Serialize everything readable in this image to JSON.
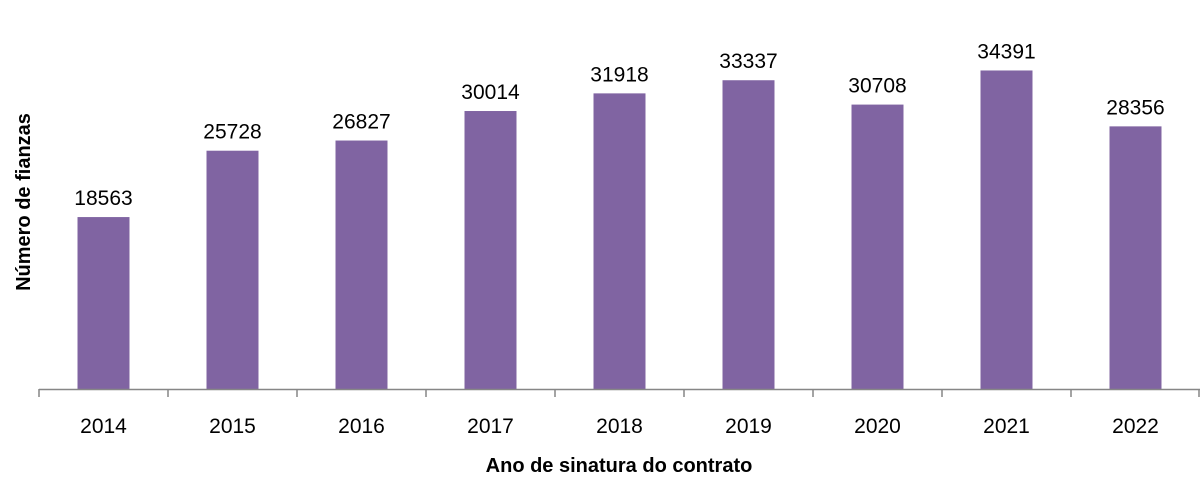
{
  "chart_data": {
    "type": "bar",
    "title": "",
    "xlabel": "Ano de sinatura do contrato",
    "ylabel": "Número de  fianzas",
    "categories": [
      "2014",
      "2015",
      "2016",
      "2017",
      "2018",
      "2019",
      "2020",
      "2021",
      "2022"
    ],
    "values": [
      18563,
      25728,
      26827,
      30014,
      31918,
      33337,
      30708,
      34391,
      28356
    ],
    "ylim": [
      0,
      42000
    ],
    "grid": false,
    "legend": "none",
    "bar_color": "#8064A2"
  }
}
